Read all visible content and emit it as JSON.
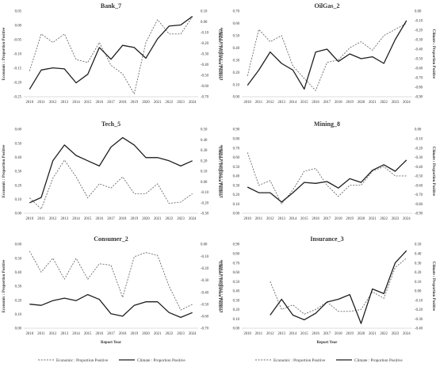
{
  "chart_data": [
    {
      "type": "line",
      "title": "Bank_7",
      "xlabel": "",
      "ylabel": "Economic : Proportion Positive",
      "y2label": "Climate : Proportion Positive",
      "x": [
        "2010",
        "2011",
        "2012",
        "2013",
        "2014",
        "2015",
        "2016",
        "2017",
        "2018",
        "2019",
        "2020",
        "2021",
        "2022",
        "2023",
        "2024"
      ],
      "ylim": [
        -0.25,
        0.05
      ],
      "yticks": [
        "-0.25",
        "-0.20",
        "-0.15",
        "-0.10",
        "-0.05",
        "0.00",
        "0.05"
      ],
      "y2lim": [
        -0.7,
        0.1
      ],
      "y2ticks": [
        "-0.70",
        "-0.60",
        "-0.50",
        "-0.40",
        "-0.30",
        "-0.20",
        "-0.10",
        "0.00",
        "0.10"
      ],
      "series": [
        {
          "name": "Economic : Proportion Positive",
          "axis": "left",
          "style": "dashed",
          "values": [
            -0.16,
            -0.03,
            -0.06,
            -0.03,
            -0.12,
            -0.13,
            -0.06,
            -0.14,
            -0.17,
            -0.24,
            -0.06,
            0.02,
            -0.03,
            -0.03,
            0.03
          ]
        },
        {
          "name": "Climate : Proportion Positive",
          "axis": "right",
          "style": "solid",
          "values": [
            -0.63,
            -0.45,
            -0.43,
            -0.44,
            -0.57,
            -0.49,
            -0.24,
            -0.35,
            -0.22,
            -0.24,
            -0.34,
            -0.16,
            -0.04,
            -0.03,
            0.05
          ]
        }
      ]
    },
    {
      "type": "line",
      "title": "OilGas_2",
      "xlabel": "",
      "ylabel": "Economic : Proportion Positive",
      "y2label": "Climate : Proportion Positive",
      "x": [
        "2010",
        "2011",
        "2012",
        "2013",
        "2014",
        "2015",
        "2016",
        "2017",
        "2018",
        "2019",
        "2020",
        "2021",
        "2022",
        "2023",
        "2024"
      ],
      "ylim": [
        0.0,
        0.7
      ],
      "yticks": [
        "0.00",
        "0.10",
        "0.20",
        "0.30",
        "0.40",
        "0.50",
        "0.60",
        "0.70"
      ],
      "y2lim": [
        -0.9,
        0.0
      ],
      "y2ticks": [
        "-0.90",
        "-0.80",
        "-0.70",
        "-0.60",
        "-0.50",
        "-0.40",
        "-0.30",
        "-0.20",
        "-0.10",
        "0.00"
      ],
      "series": [
        {
          "name": "Economic : Proportion Positive",
          "axis": "left",
          "style": "dashed",
          "values": [
            0.17,
            0.55,
            0.45,
            0.5,
            0.25,
            0.15,
            0.05,
            0.28,
            0.3,
            0.4,
            0.45,
            0.38,
            0.5,
            0.55,
            0.6
          ]
        },
        {
          "name": "Climate : Proportion Positive",
          "axis": "right",
          "style": "solid",
          "values": [
            -0.78,
            -0.62,
            -0.43,
            -0.55,
            -0.62,
            -0.82,
            -0.43,
            -0.4,
            -0.53,
            -0.45,
            -0.5,
            -0.48,
            -0.55,
            -0.3,
            -0.1
          ]
        }
      ]
    },
    {
      "type": "line",
      "title": "Tech_5",
      "xlabel": "",
      "ylabel": "Economic : Proportion Positive",
      "y2label": "Climate : Proportion Positive",
      "x": [
        "2010",
        "2011",
        "2012",
        "2013",
        "2014",
        "2015",
        "2016",
        "2017",
        "2018",
        "2019",
        "2020",
        "2021",
        "2022",
        "2023",
        "2024"
      ],
      "ylim": [
        0.0,
        0.6
      ],
      "yticks": [
        "0.00",
        "0.10",
        "0.20",
        "0.30",
        "0.40",
        "0.50",
        "0.60"
      ],
      "y2lim": [
        -0.3,
        0.5
      ],
      "y2ticks": [
        "-0.30",
        "-0.20",
        "-0.10",
        "0.00",
        "0.10",
        "0.20",
        "0.30",
        "0.40",
        "0.50"
      ],
      "series": [
        {
          "name": "Economic : Proportion Positive",
          "axis": "left",
          "style": "dashed",
          "values": [
            0.11,
            0.03,
            0.25,
            0.38,
            0.26,
            0.11,
            0.21,
            0.18,
            0.26,
            0.14,
            0.14,
            0.21,
            0.07,
            0.08,
            0.14
          ]
        },
        {
          "name": "Climate : Proportion Positive",
          "axis": "right",
          "style": "solid",
          "values": [
            -0.2,
            -0.15,
            0.2,
            0.35,
            0.25,
            0.2,
            0.15,
            0.33,
            0.42,
            0.35,
            0.23,
            0.23,
            0.2,
            0.15,
            0.2
          ]
        }
      ]
    },
    {
      "type": "line",
      "title": "Mining_8",
      "xlabel": "",
      "ylabel": "Economic : Proportion Positive",
      "y2label": "Climate : Proportion Positive",
      "x": [
        "2010",
        "2011",
        "2012",
        "2013",
        "2014",
        "2015",
        "2016",
        "2017",
        "2018",
        "2019",
        "2020",
        "2021",
        "2022",
        "2023",
        "2024"
      ],
      "ylim": [
        0.0,
        0.9
      ],
      "yticks": [
        "0.00",
        "0.10",
        "0.20",
        "0.30",
        "0.40",
        "0.50",
        "0.60",
        "0.70",
        "0.80",
        "0.90"
      ],
      "y2lim": [
        -0.9,
        0.0
      ],
      "y2ticks": [
        "-0.90",
        "-0.80",
        "-0.70",
        "-0.60",
        "-0.50",
        "-0.40",
        "-0.30",
        "-0.20",
        "-0.10",
        "0.00"
      ],
      "series": [
        {
          "name": "Economic : Proportion Positive",
          "axis": "left",
          "style": "dashed",
          "values": [
            0.65,
            0.3,
            0.35,
            0.1,
            0.25,
            0.45,
            0.48,
            0.3,
            0.18,
            0.3,
            0.3,
            0.45,
            0.5,
            0.4,
            0.4
          ]
        },
        {
          "name": "Climate : Proportion Positive",
          "axis": "right",
          "style": "solid",
          "values": [
            -0.62,
            -0.68,
            -0.68,
            -0.78,
            -0.68,
            -0.57,
            -0.58,
            -0.56,
            -0.63,
            -0.53,
            -0.57,
            -0.44,
            -0.38,
            -0.45,
            -0.33
          ]
        }
      ]
    },
    {
      "type": "line",
      "title": "Consumer_2",
      "xlabel": "Report Year",
      "ylabel": "Economic : Proportion Positive",
      "y2label": "Climate : Proportion Positive",
      "x": [
        "2010",
        "2011",
        "2012",
        "2013",
        "2014",
        "2015",
        "2016",
        "2017",
        "2018",
        "2019",
        "2020",
        "2021",
        "2022",
        "2023",
        "2024"
      ],
      "ylim": [
        0.0,
        0.6
      ],
      "yticks": [
        "0.00",
        "0.10",
        "0.20",
        "0.30",
        "0.40",
        "0.50",
        "0.60"
      ],
      "y2lim": [
        -0.7,
        0.0
      ],
      "y2ticks": [
        "-0.70",
        "-0.60",
        "-0.50",
        "-0.40",
        "-0.30",
        "-0.20",
        "-0.10",
        "0.00"
      ],
      "series": [
        {
          "name": "Economic : Proportion Positive",
          "axis": "left",
          "style": "dashed",
          "values": [
            0.55,
            0.4,
            0.5,
            0.35,
            0.5,
            0.35,
            0.46,
            0.45,
            0.22,
            0.51,
            0.54,
            0.52,
            0.3,
            0.13,
            0.17
          ]
        },
        {
          "name": "Climate : Proportion Positive",
          "axis": "right",
          "style": "solid",
          "values": [
            -0.5,
            -0.51,
            -0.47,
            -0.45,
            -0.47,
            -0.42,
            -0.46,
            -0.58,
            -0.6,
            -0.51,
            -0.48,
            -0.48,
            -0.57,
            -0.61,
            -0.57
          ]
        }
      ]
    },
    {
      "type": "line",
      "title": "Insurance_3",
      "xlabel": "Report Year",
      "ylabel": "Economic : Proportion Positive",
      "y2label": "Climate : Proportion Positive",
      "x": [
        "2010",
        "2011",
        "2012",
        "2013",
        "2014",
        "2015",
        "2016",
        "2017",
        "2018",
        "2019",
        "2020",
        "2021",
        "2022",
        "2023",
        "2024"
      ],
      "ylim": [
        0.0,
        0.9
      ],
      "yticks": [
        "0.00",
        "0.10",
        "0.20",
        "0.30",
        "0.40",
        "0.50",
        "0.60",
        "0.70",
        "0.80",
        "0.90"
      ],
      "y2lim": [
        -0.4,
        0.5
      ],
      "y2ticks": [
        "-0.40",
        "-0.30",
        "-0.20",
        "-0.10",
        "0.00",
        "0.10",
        "0.20",
        "0.30",
        "0.40",
        "0.50"
      ],
      "series": [
        {
          "name": "Economic : Proportion Positive",
          "axis": "left",
          "style": "dashed",
          "values": [
            null,
            null,
            0.5,
            0.2,
            0.25,
            0.15,
            0.2,
            0.28,
            0.18,
            0.18,
            0.2,
            0.39,
            0.32,
            0.65,
            0.75
          ]
        },
        {
          "name": "Climate : Proportion Positive",
          "axis": "right",
          "style": "solid",
          "values": [
            null,
            null,
            -0.26,
            -0.09,
            -0.26,
            -0.31,
            -0.24,
            -0.12,
            -0.09,
            -0.04,
            -0.35,
            0.02,
            -0.03,
            0.3,
            0.43
          ]
        }
      ]
    }
  ],
  "legend": {
    "economic_label": "Economic : Proportion Positive",
    "climate_label": "Climate : Proportion Positive"
  }
}
